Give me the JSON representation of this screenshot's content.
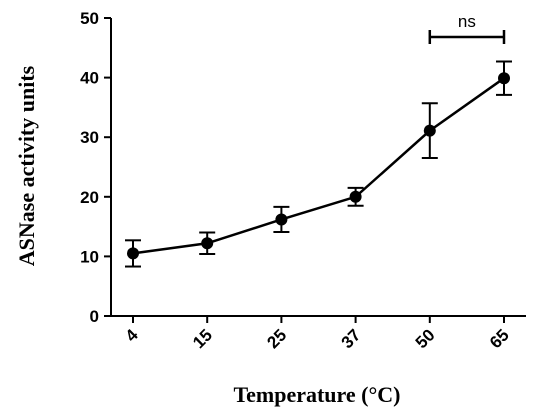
{
  "chart_data": {
    "type": "line",
    "xlabel": "Temperature (°C)",
    "ylabel": "ASNase activity units",
    "categories": [
      "4",
      "15",
      "25",
      "37",
      "50",
      "65"
    ],
    "values": [
      10.5,
      12.2,
      16.2,
      20.0,
      31.1,
      39.9
    ],
    "errors": [
      2.2,
      1.8,
      2.1,
      1.5,
      4.6,
      2.8
    ],
    "ylim": [
      0,
      50
    ],
    "yticks": [
      "0",
      "10",
      "20",
      "30",
      "40",
      "50"
    ],
    "grid": false,
    "legend": "none",
    "annotations": [
      {
        "text": "ns",
        "from": "50",
        "to": "65"
      }
    ]
  }
}
